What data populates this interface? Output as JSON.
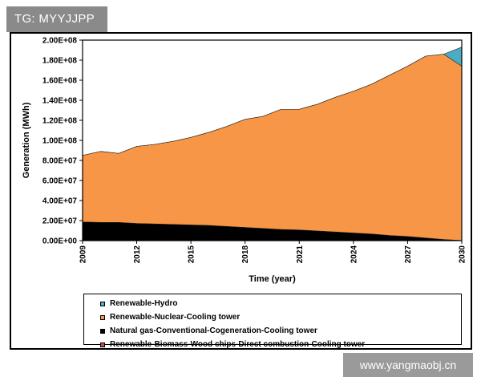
{
  "watermark_top": "TG: MYYJJPP",
  "watermark_bottom": "www.yangmaobj.cn",
  "chart_data": {
    "type": "area",
    "stacked": true,
    "xlabel": "Time (year)",
    "ylabel": "Generation (MWh)",
    "xlim": [
      2009,
      2030
    ],
    "ylim": [
      0,
      200000000
    ],
    "x_ticks": [
      "2009",
      "2012",
      "2015",
      "2018",
      "2021",
      "2024",
      "2027",
      "2030"
    ],
    "y_ticks": [
      "0.00E+00",
      "2.00E+07",
      "4.00E+07",
      "6.00E+07",
      "8.00E+07",
      "1.00E+08",
      "1.20E+08",
      "1.40E+08",
      "1.60E+08",
      "1.80E+08",
      "2.00E+08"
    ],
    "grid": false,
    "x": [
      2009,
      2010,
      2011,
      2012,
      2013,
      2014,
      2015,
      2016,
      2017,
      2018,
      2019,
      2020,
      2021,
      2022,
      2023,
      2024,
      2025,
      2026,
      2027,
      2028,
      2029,
      2030
    ],
    "series": [
      {
        "name": "Renewable-Biomass-Wood chips-Direct combustion-Cooling tower",
        "color": "#c0504d",
        "values": [
          200000,
          200000,
          200000,
          200000,
          200000,
          200000,
          200000,
          200000,
          200000,
          200000,
          200000,
          200000,
          200000,
          200000,
          200000,
          200000,
          200000,
          200000,
          200000,
          200000,
          200000,
          200000
        ]
      },
      {
        "name": "Natural gas-Conventional-Cogeneration-Cooling tower",
        "color": "#000000",
        "values": [
          18500000,
          18000000,
          18000000,
          17000000,
          16500000,
          16000000,
          15500000,
          15000000,
          14000000,
          13000000,
          12000000,
          11000000,
          10500000,
          9500000,
          8500000,
          7500000,
          6500000,
          5000000,
          4000000,
          2500000,
          1000000,
          0
        ]
      },
      {
        "name": "Renewable-Nuclear-Cooling tower",
        "color": "#f79646",
        "values": [
          66300000,
          70800000,
          68800000,
          76800000,
          79300000,
          82800000,
          87300000,
          92800000,
          99800000,
          107800000,
          111800000,
          119800000,
          120300000,
          126300000,
          134300000,
          141300000,
          149300000,
          159800000,
          169800000,
          181300000,
          184800000,
          173800000
        ]
      },
      {
        "name": "Renewable-Hydro",
        "color": "#4bacc6",
        "values": [
          0,
          0,
          0,
          0,
          0,
          0,
          0,
          0,
          0,
          0,
          0,
          0,
          0,
          0,
          0,
          0,
          0,
          0,
          0,
          0,
          0,
          19000000
        ]
      }
    ],
    "legend": {
      "placement": "bottom",
      "entries": [
        "Renewable-Hydro",
        "Renewable-Nuclear-Cooling tower",
        "Natural gas-Conventional-Cogeneration-Cooling tower",
        "Renewable-Biomass-Wood chips-Direct combustion-Cooling tower"
      ]
    }
  }
}
